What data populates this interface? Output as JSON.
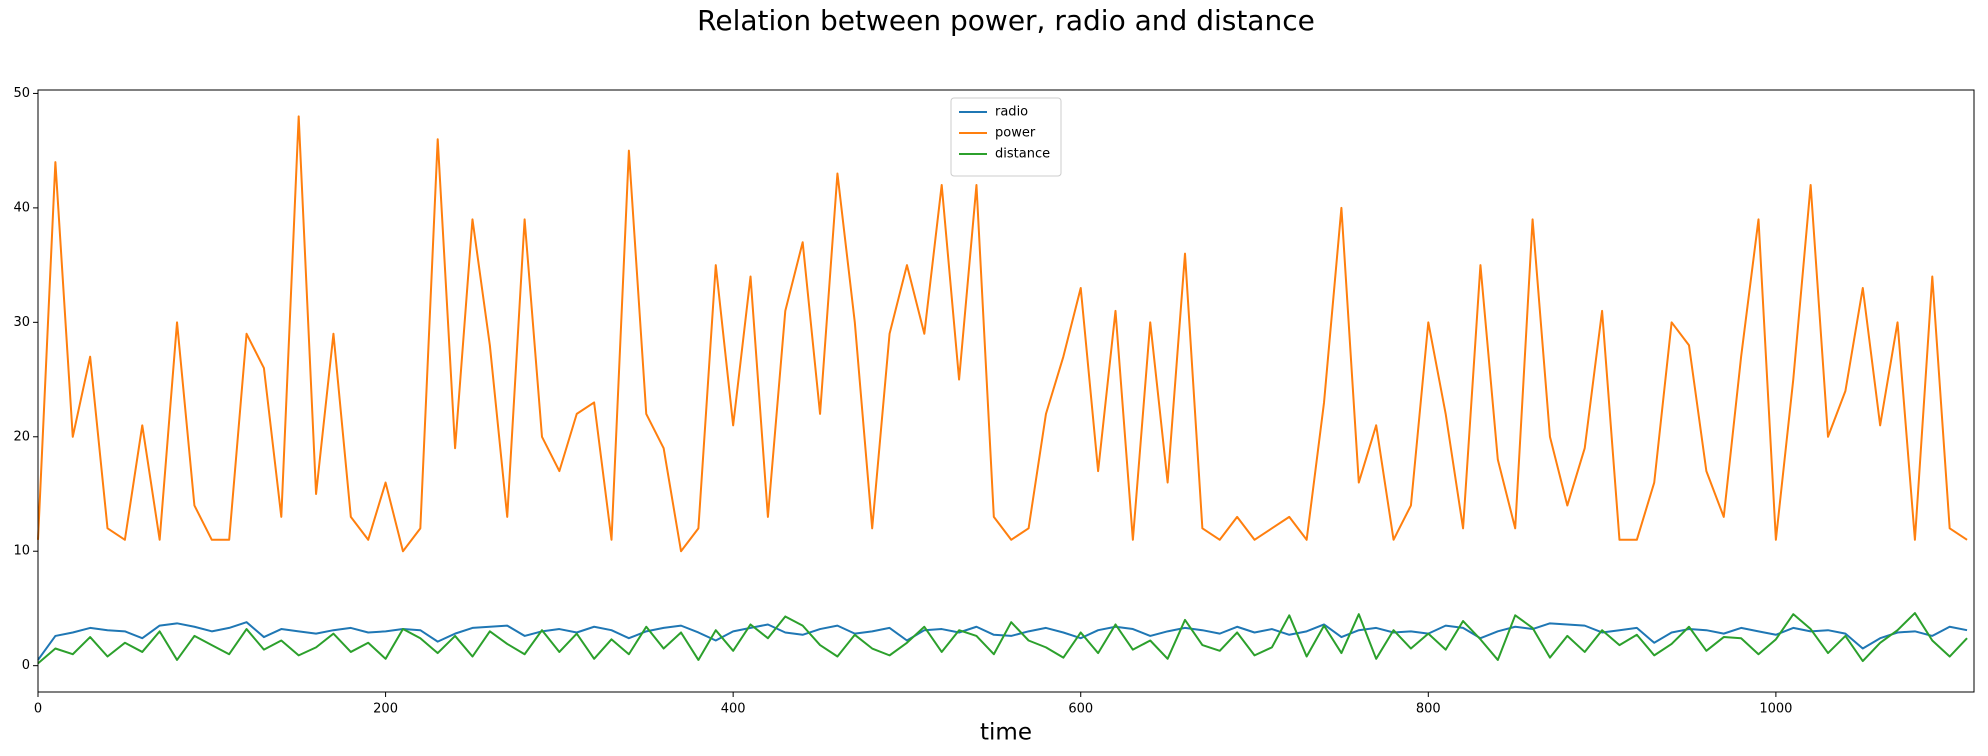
{
  "chart_data": {
    "type": "line",
    "title": "Relation between power, radio and distance",
    "x_label": "time",
    "x": [
      0,
      10,
      20,
      30,
      40,
      50,
      60,
      70,
      80,
      90,
      100,
      110,
      120,
      130,
      140,
      150,
      160,
      170,
      180,
      190,
      200,
      210,
      220,
      230,
      240,
      250,
      260,
      270,
      280,
      290,
      300,
      310,
      320,
      330,
      340,
      350,
      360,
      370,
      380,
      390,
      400,
      410,
      420,
      430,
      440,
      450,
      460,
      470,
      480,
      490,
      500,
      510,
      520,
      530,
      540,
      550,
      560,
      570,
      580,
      590,
      600,
      610,
      620,
      630,
      640,
      650,
      660,
      670,
      680,
      690,
      700,
      710,
      720,
      730,
      740,
      750,
      760,
      770,
      780,
      790,
      800,
      810,
      820,
      830,
      840,
      850,
      860,
      870,
      880,
      890,
      900,
      910,
      920,
      930,
      940,
      950,
      960,
      970,
      980,
      990,
      1000,
      1010,
      1020,
      1030,
      1040,
      1050,
      1060,
      1070,
      1080,
      1090,
      1100,
      1110
    ],
    "series": [
      {
        "name": "radio",
        "color": "#1f77b4",
        "values": [
          0.5,
          2.6,
          2.9,
          3.3,
          3.1,
          3.0,
          2.4,
          3.5,
          3.7,
          3.4,
          3.0,
          3.3,
          3.8,
          2.5,
          3.2,
          3.0,
          2.8,
          3.1,
          3.3,
          2.9,
          3.0,
          3.2,
          3.1,
          2.1,
          2.8,
          3.3,
          3.4,
          3.5,
          2.6,
          3.0,
          3.2,
          2.9,
          3.4,
          3.1,
          2.4,
          3.0,
          3.3,
          3.5,
          2.9,
          2.2,
          3.0,
          3.3,
          3.6,
          2.9,
          2.7,
          3.2,
          3.5,
          2.8,
          3.0,
          3.3,
          2.2,
          3.1,
          3.2,
          2.9,
          3.4,
          2.7,
          2.6,
          3.0,
          3.3,
          2.9,
          2.4,
          3.1,
          3.4,
          3.2,
          2.6,
          3.0,
          3.3,
          3.1,
          2.8,
          3.4,
          2.9,
          3.2,
          2.7,
          3.0,
          3.6,
          2.5,
          3.1,
          3.3,
          2.9,
          3.0,
          2.8,
          3.5,
          3.3,
          2.4,
          3.0,
          3.4,
          3.2,
          3.7,
          3.6,
          3.5,
          2.9,
          3.1,
          3.3,
          2.0,
          2.9,
          3.2,
          3.1,
          2.8,
          3.3,
          3.0,
          2.7,
          3.3,
          3.0,
          3.1,
          2.8,
          1.5,
          2.4,
          2.9,
          3.0,
          2.6,
          3.4,
          3.1
        ]
      },
      {
        "name": "power",
        "color": "#ff7f0e",
        "values": [
          11,
          44,
          20,
          27,
          12,
          11,
          21,
          11,
          30,
          14,
          11,
          11,
          29,
          26,
          13,
          48,
          15,
          29,
          13,
          11,
          16,
          10,
          12,
          46,
          19,
          39,
          28,
          13,
          39,
          20,
          17,
          22,
          23,
          11,
          45,
          22,
          19,
          10,
          12,
          35,
          21,
          34,
          13,
          31,
          37,
          22,
          43,
          30,
          12,
          29,
          35,
          29,
          42,
          25,
          42,
          13,
          11,
          12,
          22,
          27,
          33,
          17,
          31,
          11,
          30,
          16,
          36,
          12,
          11,
          13,
          11,
          12,
          13,
          11,
          23,
          40,
          16,
          21,
          11,
          14,
          30,
          22,
          12,
          35,
          18,
          12,
          39,
          20,
          14,
          19,
          31,
          11,
          11,
          16,
          30,
          28,
          17,
          13,
          27,
          39,
          11,
          25,
          42,
          20,
          24,
          33,
          21,
          30,
          11,
          34,
          12,
          11
        ]
      },
      {
        "name": "distance",
        "color": "#2ca02c",
        "values": [
          0.2,
          1.5,
          1.0,
          2.5,
          0.8,
          2.0,
          1.2,
          3.0,
          0.5,
          2.6,
          1.8,
          1.0,
          3.2,
          1.4,
          2.2,
          0.9,
          1.6,
          2.8,
          1.2,
          2.0,
          0.6,
          3.2,
          2.4,
          1.1,
          2.6,
          0.8,
          3.0,
          1.9,
          1.0,
          3.1,
          1.2,
          2.8,
          0.6,
          2.3,
          1.0,
          3.4,
          1.5,
          2.9,
          0.5,
          3.1,
          1.3,
          3.6,
          2.4,
          4.3,
          3.5,
          1.8,
          0.8,
          2.7,
          1.5,
          0.9,
          2.0,
          3.4,
          1.2,
          3.1,
          2.6,
          1.0,
          3.8,
          2.2,
          1.6,
          0.7,
          2.9,
          1.1,
          3.6,
          1.4,
          2.2,
          0.6,
          4.0,
          1.8,
          1.3,
          2.9,
          0.9,
          1.6,
          4.4,
          0.8,
          3.5,
          1.1,
          4.5,
          0.6,
          3.1,
          1.5,
          2.8,
          1.4,
          3.9,
          2.3,
          0.5,
          4.4,
          3.3,
          0.7,
          2.6,
          1.2,
          3.1,
          1.8,
          2.7,
          0.9,
          1.9,
          3.4,
          1.3,
          2.5,
          2.4,
          1.0,
          2.3,
          4.5,
          3.2,
          1.1,
          2.6,
          0.4,
          2.0,
          3.1,
          4.6,
          2.2,
          0.8,
          2.4
        ]
      }
    ],
    "xlim": [
      0,
      1114
    ],
    "xticks": [
      0,
      200,
      400,
      600,
      800,
      1000
    ],
    "ylim": [
      -2.3,
      50.3
    ],
    "yticks": [
      0,
      10,
      20,
      30,
      40,
      50
    ],
    "grid": false,
    "legend": "upper center"
  }
}
